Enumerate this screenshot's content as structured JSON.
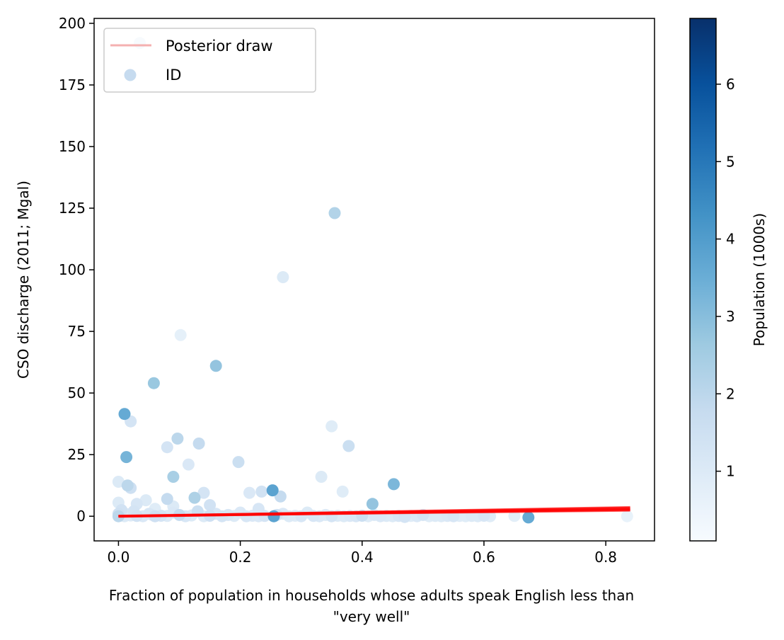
{
  "chart_data": {
    "type": "scatter",
    "xlabel_lines": [
      "Fraction of population in households whose adults speak English less than",
      "\"very well\""
    ],
    "ylabel": "CSO discharge (2011; Mgal)",
    "xlim": [
      -0.04,
      0.88
    ],
    "ylim": [
      -10,
      202
    ],
    "x_ticks": [
      0.0,
      0.2,
      0.4,
      0.6,
      0.8
    ],
    "x_tick_labels": [
      "0.0",
      "0.2",
      "0.4",
      "0.6",
      "0.8"
    ],
    "y_ticks": [
      0,
      25,
      50,
      75,
      100,
      125,
      150,
      175,
      200
    ],
    "y_tick_labels": [
      "0",
      "25",
      "50",
      "75",
      "100",
      "125",
      "150",
      "175",
      "200"
    ],
    "grid": false,
    "legend": {
      "placement": "top-left",
      "entries": [
        {
          "label": "Posterior draw",
          "kind": "line",
          "color": "#f4b0b0"
        },
        {
          "label": "ID",
          "kind": "marker",
          "color": "#c6dbef"
        }
      ]
    },
    "colorbar": {
      "label": "Population (1000s)",
      "min": 0.1,
      "max": 6.85,
      "ticks": [
        1,
        2,
        3,
        4,
        5,
        6
      ],
      "tick_labels": [
        "1",
        "2",
        "3",
        "4",
        "5",
        "6"
      ],
      "colormap": "Blues"
    },
    "posterior_line": {
      "color": "#ff0000",
      "x": [
        0.0,
        0.84
      ],
      "y_draws": [
        [
          0.0,
          2.3
        ],
        [
          -0.2,
          2.8
        ],
        [
          0.1,
          3.3
        ],
        [
          0.0,
          3.7
        ],
        [
          -0.1,
          2.6
        ],
        [
          0.2,
          3.0
        ],
        [
          0.0,
          3.5
        ],
        [
          0.1,
          2.5
        ]
      ]
    },
    "series": [
      {
        "name": "ID",
        "points": [
          [
            0.035,
            192,
            1.3
          ],
          [
            0.355,
            123,
            2.2
          ],
          [
            0.27,
            97,
            1.0
          ],
          [
            0.102,
            73.5,
            0.7
          ],
          [
            0.16,
            61,
            2.8
          ],
          [
            0.058,
            54,
            2.7
          ],
          [
            0.01,
            41.5,
            3.6
          ],
          [
            0.02,
            38.5,
            1.3
          ],
          [
            0.35,
            36.5,
            0.9
          ],
          [
            0.097,
            31.5,
            2.0
          ],
          [
            0.132,
            29.5,
            1.8
          ],
          [
            0.08,
            28,
            1.3
          ],
          [
            0.378,
            28.5,
            1.6
          ],
          [
            0.013,
            24,
            3.3
          ],
          [
            0.197,
            22,
            1.6
          ],
          [
            0.115,
            21,
            1.1
          ],
          [
            0.09,
            16,
            2.4
          ],
          [
            0.333,
            16,
            1.0
          ],
          [
            0.0,
            14,
            1.0
          ],
          [
            0.452,
            13,
            3.2
          ],
          [
            0.015,
            12.5,
            2.0
          ],
          [
            0.02,
            11.5,
            1.5
          ],
          [
            0.253,
            10.5,
            3.8
          ],
          [
            0.235,
            10,
            1.4
          ],
          [
            0.215,
            9.5,
            1.1
          ],
          [
            0.14,
            9.5,
            1.3
          ],
          [
            0.368,
            10,
            0.9
          ],
          [
            0.266,
            8,
            1.8
          ],
          [
            0.125,
            7.5,
            2.3
          ],
          [
            0.08,
            7,
            1.8
          ],
          [
            0.045,
            6.5,
            1.0
          ],
          [
            0.0,
            5.5,
            1.0
          ],
          [
            0.417,
            5,
            2.8
          ],
          [
            0.03,
            5,
            1.2
          ],
          [
            0.15,
            4.5,
            1.4
          ],
          [
            0.09,
            4,
            1.0
          ],
          [
            0.23,
            3,
            1.2
          ],
          [
            0.06,
            3,
            0.9
          ],
          [
            0.005,
            2.5,
            1.4
          ],
          [
            0.13,
            2,
            1.6
          ],
          [
            0.2,
            1.5,
            1.1
          ],
          [
            0.31,
            1.5,
            1.0
          ],
          [
            0.0,
            1.0,
            1.5
          ],
          [
            0.05,
            1.0,
            1.2
          ],
          [
            0.1,
            0.5,
            1.8
          ],
          [
            0.18,
            0.5,
            1.2
          ],
          [
            0.26,
            0.5,
            1.4
          ],
          [
            0.34,
            0.5,
            1.0
          ],
          [
            0.42,
            0.5,
            1.1
          ],
          [
            0.5,
            0.5,
            1.3
          ],
          [
            0.02,
            0.3,
            1.0
          ],
          [
            0.07,
            0.2,
            1.3
          ],
          [
            0.12,
            0.3,
            1.0
          ],
          [
            0.15,
            0.2,
            1.5
          ],
          [
            0.22,
            0.2,
            1.1
          ],
          [
            0.24,
            0.1,
            1.3
          ],
          [
            0.29,
            0.2,
            0.9
          ],
          [
            0.32,
            0.1,
            1.2
          ],
          [
            0.36,
            0.2,
            1.0
          ],
          [
            0.38,
            0.1,
            1.1
          ],
          [
            0.4,
            0.2,
            1.6
          ],
          [
            0.44,
            0.1,
            1.0
          ],
          [
            0.46,
            0.1,
            1.2
          ],
          [
            0.48,
            0.1,
            0.9
          ],
          [
            0.52,
            0.1,
            1.0
          ],
          [
            0.54,
            0.1,
            1.1
          ],
          [
            0.56,
            0.1,
            0.9
          ],
          [
            0.58,
            0.1,
            1.0
          ],
          [
            0.6,
            0.2,
            1.2
          ],
          [
            0.65,
            0.1,
            0.8
          ],
          [
            0.673,
            -0.5,
            3.6
          ],
          [
            0.47,
            -0.3,
            1.3
          ],
          [
            0.0,
            0.0,
            2.0
          ],
          [
            0.01,
            0.0,
            1.0
          ],
          [
            0.03,
            0.1,
            1.4
          ],
          [
            0.04,
            0.0,
            1.1
          ],
          [
            0.06,
            0.0,
            1.5
          ],
          [
            0.08,
            0.1,
            1.0
          ],
          [
            0.11,
            0.0,
            1.2
          ],
          [
            0.14,
            0.0,
            1.0
          ],
          [
            0.17,
            0.0,
            1.3
          ],
          [
            0.19,
            0.1,
            1.0
          ],
          [
            0.21,
            0.0,
            1.2
          ],
          [
            0.23,
            0.0,
            1.1
          ],
          [
            0.255,
            0.0,
            3.8
          ],
          [
            0.28,
            0.0,
            1.0
          ],
          [
            0.3,
            0.0,
            1.2
          ],
          [
            0.33,
            0.0,
            1.1
          ],
          [
            0.35,
            0.0,
            1.3
          ],
          [
            0.37,
            0.0,
            1.0
          ],
          [
            0.39,
            0.0,
            1.2
          ],
          [
            0.41,
            0.0,
            0.9
          ],
          [
            0.43,
            0.0,
            1.1
          ],
          [
            0.45,
            0.0,
            1.0
          ],
          [
            0.49,
            0.0,
            1.1
          ],
          [
            0.51,
            0.0,
            0.9
          ],
          [
            0.53,
            0.0,
            1.0
          ],
          [
            0.55,
            0.0,
            1.2
          ],
          [
            0.57,
            0.0,
            0.9
          ],
          [
            0.59,
            0.0,
            1.0
          ],
          [
            0.61,
            0.0,
            0.9
          ],
          [
            0.835,
            0.0,
            0.6
          ],
          [
            0.09,
            1.5,
            1.1
          ],
          [
            0.16,
            1.0,
            1.2
          ],
          [
            0.27,
            1.0,
            1.1
          ],
          [
            0.025,
            2.0,
            1.3
          ],
          [
            0.015,
            0.8,
            1.1
          ],
          [
            0.055,
            0.6,
            1.0
          ]
        ]
      }
    ]
  }
}
